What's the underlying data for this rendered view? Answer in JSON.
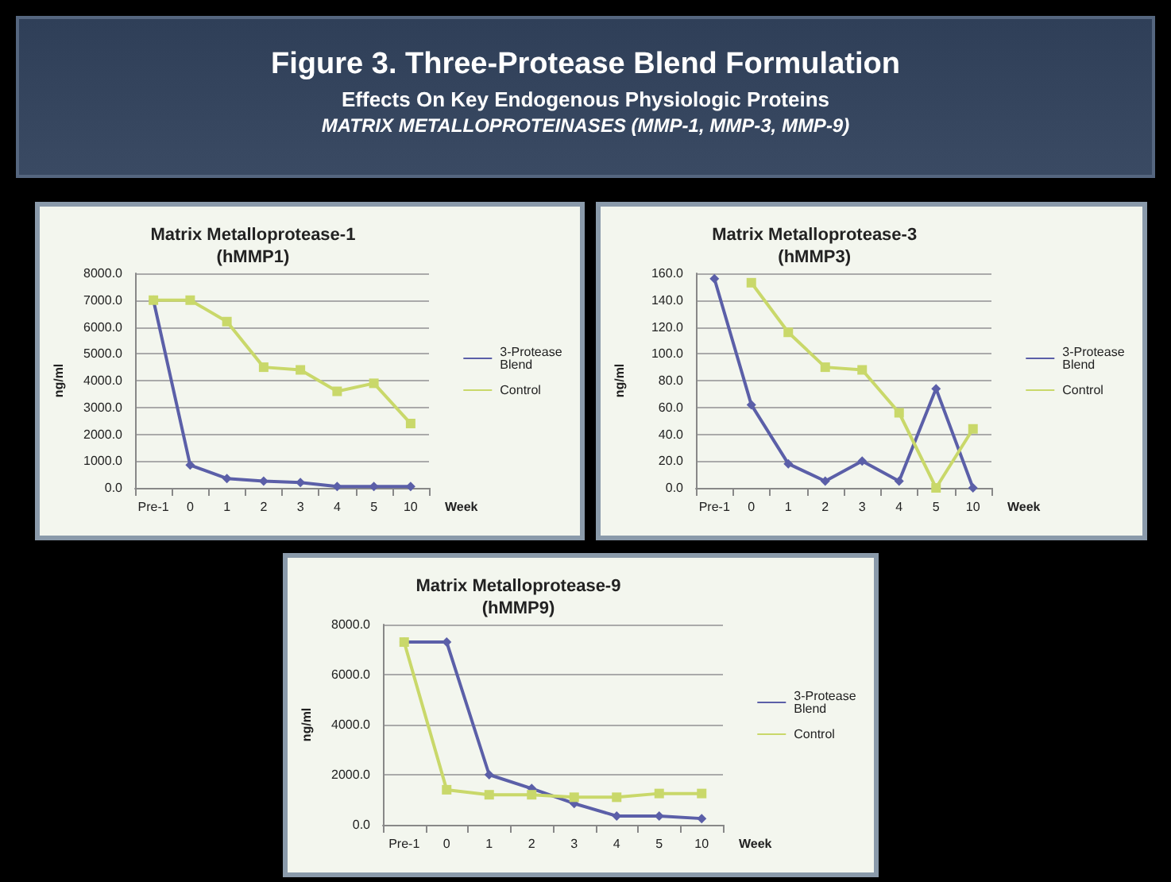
{
  "chart_data": [
    {
      "type": "other",
      "title": "Figure 3. Three-Protease Blend Formulation",
      "subtitle": "Effects On Key Endogenous Physiologic Proteins",
      "annotations": [
        "MATRIX METALLOPROTEINASES (MMP-1, MMP-3, MMP-9)"
      ]
    },
    {
      "type": "line",
      "title": "Matrix Metalloprotease-1\n(hMMP1)",
      "xlabel": "Week",
      "ylabel": "ng/ml",
      "categories": [
        "Pre-1",
        "0",
        "1",
        "2",
        "3",
        "4",
        "5",
        "10"
      ],
      "ylim": [
        0,
        8000
      ],
      "yticks": [
        {
          "value": 0,
          "label": "0.0"
        },
        {
          "value": 1000,
          "label": "1000.0"
        },
        {
          "value": 2000,
          "label": "2000.0"
        },
        {
          "value": 3000,
          "label": "3000.0"
        },
        {
          "value": 4000,
          "label": "4000.0"
        },
        {
          "value": 5000,
          "label": "5000.0"
        },
        {
          "value": 6000,
          "label": "6000.0"
        },
        {
          "value": 7000,
          "label": "7000.0"
        },
        {
          "value": 8000,
          "label": "8000.0"
        }
      ],
      "grid": "y",
      "legend": "right",
      "series": [
        {
          "name": "3-Protease Blend",
          "color": "#5b5fa8",
          "marker": "diamond",
          "values": [
            7000,
            850,
            350,
            250,
            200,
            50,
            50,
            50
          ]
        },
        {
          "name": "Control",
          "color": "#c9d86a",
          "marker": "square",
          "values": [
            7000,
            7000,
            6200,
            4500,
            4400,
            3600,
            3900,
            2400
          ]
        }
      ]
    },
    {
      "type": "line",
      "title": "Matrix Metalloprotease-3\n(hMMP3)",
      "xlabel": "Week",
      "ylabel": "ng/ml",
      "categories": [
        "Pre-1",
        "0",
        "1",
        "2",
        "3",
        "4",
        "5",
        "10"
      ],
      "ylim": [
        0,
        160
      ],
      "yticks": [
        {
          "value": 0,
          "label": "0.0"
        },
        {
          "value": 20,
          "label": "20.0"
        },
        {
          "value": 40,
          "label": "40.0"
        },
        {
          "value": 60,
          "label": "60.0"
        },
        {
          "value": 80,
          "label": "80.0"
        },
        {
          "value": 100,
          "label": "100.0"
        },
        {
          "value": 120,
          "label": "120.0"
        },
        {
          "value": 140,
          "label": "140.0"
        },
        {
          "value": 160,
          "label": "160.0"
        }
      ],
      "grid": "y",
      "legend": "right",
      "series": [
        {
          "name": "3-Protease Blend",
          "color": "#5b5fa8",
          "marker": "diamond",
          "values": [
            156,
            62,
            18,
            5,
            20,
            5,
            74,
            0
          ]
        },
        {
          "name": "Control",
          "color": "#c9d86a",
          "marker": "square",
          "values": [
            null,
            153,
            116,
            90,
            88,
            56,
            0,
            44
          ]
        }
      ]
    },
    {
      "type": "line",
      "title": "Matrix Metalloprotease-9\n(hMMP9)",
      "xlabel": "Week",
      "ylabel": "ng/ml",
      "categories": [
        "Pre-1",
        "0",
        "1",
        "2",
        "3",
        "4",
        "5",
        "10"
      ],
      "ylim": [
        0,
        8000
      ],
      "yticks": [
        {
          "value": 0,
          "label": "0.0"
        },
        {
          "value": 2000,
          "label": "2000.0"
        },
        {
          "value": 4000,
          "label": "4000.0"
        },
        {
          "value": 6000,
          "label": "6000.0"
        },
        {
          "value": 8000,
          "label": "8000.0"
        }
      ],
      "grid": "y",
      "legend": "right",
      "series": [
        {
          "name": "3-Protease Blend",
          "color": "#5b5fa8",
          "marker": "diamond",
          "values": [
            7300,
            7300,
            2000,
            1450,
            850,
            350,
            350,
            250
          ]
        },
        {
          "name": "Control",
          "color": "#c9d86a",
          "marker": "square",
          "values": [
            7300,
            1400,
            1200,
            1200,
            1100,
            1100,
            1250,
            1250
          ]
        }
      ]
    }
  ]
}
